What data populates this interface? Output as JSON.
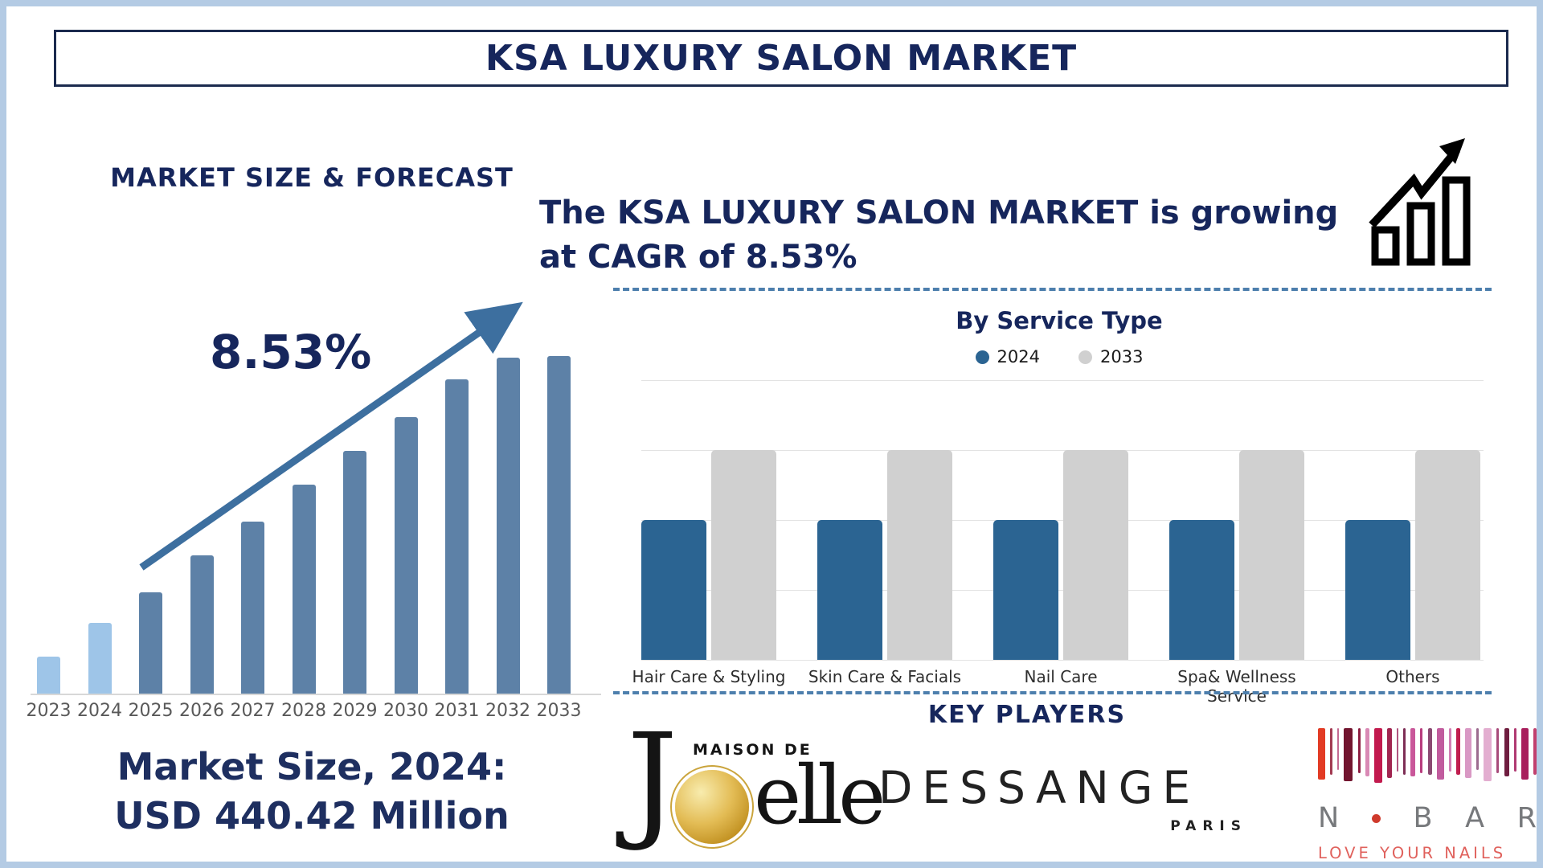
{
  "title": "KSA LUXURY SALON MARKET",
  "forecast": {
    "heading": "MARKET SIZE & FORECAST",
    "cagr": "8.53%",
    "market_size": {
      "line1": "Market Size, 2024:",
      "line2": "USD 440.42 Million"
    }
  },
  "growth_note": {
    "line1": "The KSA LUXURY SALON MARKET is growing",
    "line2": "at CAGR of 8.53%"
  },
  "service": {
    "title": "By Service Type"
  },
  "key_players": {
    "heading": "KEY PLAYERS",
    "joelle": {
      "top": "MAISON DE",
      "j": "J",
      "rest": "elle"
    },
    "dessange": {
      "name": "DESSANGE",
      "sub": "PARIS"
    },
    "nbar": {
      "first_letter": "N",
      "rest_b": "B",
      "rest_a": "A",
      "rest_r": "R",
      "tagline": "LOVE YOUR NAILS",
      "strokes": [
        [
          9,
          64,
          "#e23b24"
        ],
        [
          3,
          58,
          "#a23b52"
        ],
        [
          2,
          52,
          "#c46a93"
        ],
        [
          11,
          66,
          "#72152f"
        ],
        [
          3,
          56,
          "#8c1d41"
        ],
        [
          5,
          60,
          "#d989b5"
        ],
        [
          10,
          68,
          "#c21a4e"
        ],
        [
          6,
          62,
          "#a12550"
        ],
        [
          2,
          54,
          "#b05580"
        ],
        [
          3,
          58,
          "#7d2d55"
        ],
        [
          6,
          60,
          "#c9579a"
        ],
        [
          3,
          56,
          "#b73d7d"
        ],
        [
          5,
          58,
          "#8a4a72"
        ],
        [
          9,
          64,
          "#c15c9e"
        ],
        [
          3,
          54,
          "#d27fb4"
        ],
        [
          5,
          58,
          "#c01d4e"
        ],
        [
          8,
          62,
          "#d998c4"
        ],
        [
          3,
          52,
          "#9c6b8f"
        ],
        [
          10,
          66,
          "#e3aed0"
        ],
        [
          3,
          56,
          "#a84a7a"
        ],
        [
          6,
          60,
          "#6f1d3f"
        ],
        [
          3,
          54,
          "#b03a72"
        ],
        [
          9,
          64,
          "#a81e5c"
        ],
        [
          4,
          58,
          "#c2406e"
        ]
      ]
    }
  },
  "colors": {
    "navy_text": "#16265c",
    "frame": "#b4cbe4",
    "forecast_bar_early": "#9ec5e8",
    "forecast_bar_later": "#5d81a7",
    "trend_arrow": "#3d6f9f",
    "service_2024": "#2b6492",
    "service_2033": "#d0d0d0",
    "dashed_separator": "#4d7fad"
  },
  "chart_data": [
    {
      "id": "market-size-forecast",
      "type": "bar",
      "title": "MARKET SIZE & FORECAST",
      "categories": [
        "2023",
        "2024",
        "2025",
        "2026",
        "2027",
        "2028",
        "2029",
        "2030",
        "2031",
        "2032",
        "2033"
      ],
      "values_relative": [
        0.11,
        0.21,
        0.3,
        0.41,
        0.51,
        0.62,
        0.72,
        0.82,
        0.93,
        0.995,
        1.0
      ],
      "value_axis": "unlabeled stylized height (fraction of 2033 bar)",
      "known_values": {
        "2024": "USD 440.42 Million"
      },
      "annotation": "8.53% CAGR with upward trend arrow",
      "bar_colors": {
        "early": "#9ec5e8",
        "later": "#5d81a7"
      },
      "xlabel": "",
      "ylabel": "",
      "grid": false
    },
    {
      "id": "by-service-type",
      "type": "bar",
      "title": "By Service Type",
      "categories": [
        "Hair Care & Styling",
        "Skin Care & Facials",
        "Nail Care",
        "Spa& Wellness Service",
        "Others"
      ],
      "series": [
        {
          "name": "2024",
          "color": "#2b6492",
          "values_relative": [
            0.5,
            0.5,
            0.5,
            0.5,
            0.5
          ]
        },
        {
          "name": "2033",
          "color": "#d0d0d0",
          "values_relative": [
            0.75,
            0.75,
            0.75,
            0.75,
            0.75
          ]
        }
      ],
      "ylim": [
        0,
        1
      ],
      "value_axis": "unlabeled stylized height",
      "grid": true,
      "legend_position": "top"
    }
  ]
}
